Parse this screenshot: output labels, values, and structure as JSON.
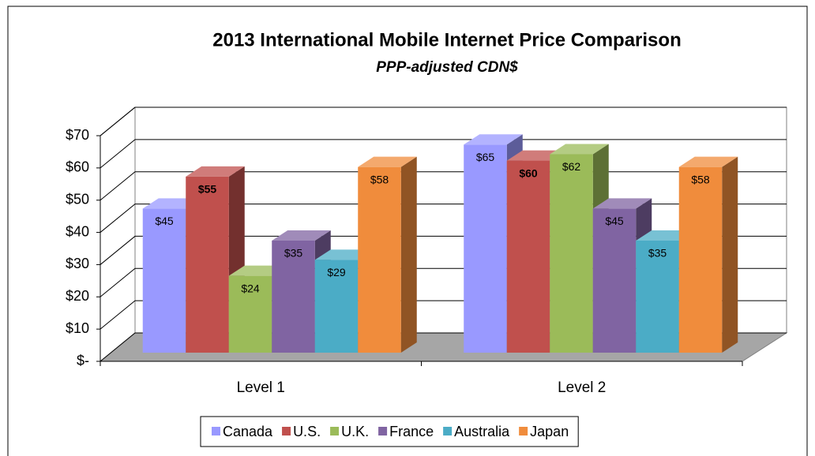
{
  "chart_data": {
    "type": "bar3d",
    "title": "2013 International Mobile Internet Price Comparison",
    "subtitle": "PPP-adjusted CDN$",
    "categories": [
      "Level 1",
      "Level 2"
    ],
    "series": [
      {
        "name": "Canada",
        "color": "#9999ff",
        "values": [
          45,
          65
        ],
        "value_labels": [
          "$45",
          "$65"
        ]
      },
      {
        "name": "U.S.",
        "color": "#c0504d",
        "values": [
          55,
          60
        ],
        "value_labels": [
          "$55",
          "$60"
        ],
        "bold_labels": true
      },
      {
        "name": "U.K.",
        "color": "#9bbb59",
        "values": [
          24,
          62
        ],
        "value_labels": [
          "$24",
          "$62"
        ]
      },
      {
        "name": "France",
        "color": "#8064a2",
        "values": [
          35,
          45
        ],
        "value_labels": [
          "$35",
          "$45"
        ]
      },
      {
        "name": "Australia",
        "color": "#4bacc6",
        "values": [
          29,
          35
        ],
        "value_labels": [
          "$29",
          "$35"
        ]
      },
      {
        "name": "Japan",
        "color": "#f08c3c",
        "values": [
          58,
          58
        ],
        "value_labels": [
          "$58",
          "$58"
        ]
      }
    ],
    "ylim": [
      0,
      70
    ],
    "yticks": [
      {
        "value": 0,
        "label": "$-"
      },
      {
        "value": 10,
        "label": "$10"
      },
      {
        "value": 20,
        "label": "$20"
      },
      {
        "value": 30,
        "label": "$30"
      },
      {
        "value": 40,
        "label": "$40"
      },
      {
        "value": 50,
        "label": "$50"
      },
      {
        "value": 60,
        "label": "$60"
      },
      {
        "value": 70,
        "label": "$70"
      }
    ],
    "grid": true,
    "legend": "bottom"
  }
}
